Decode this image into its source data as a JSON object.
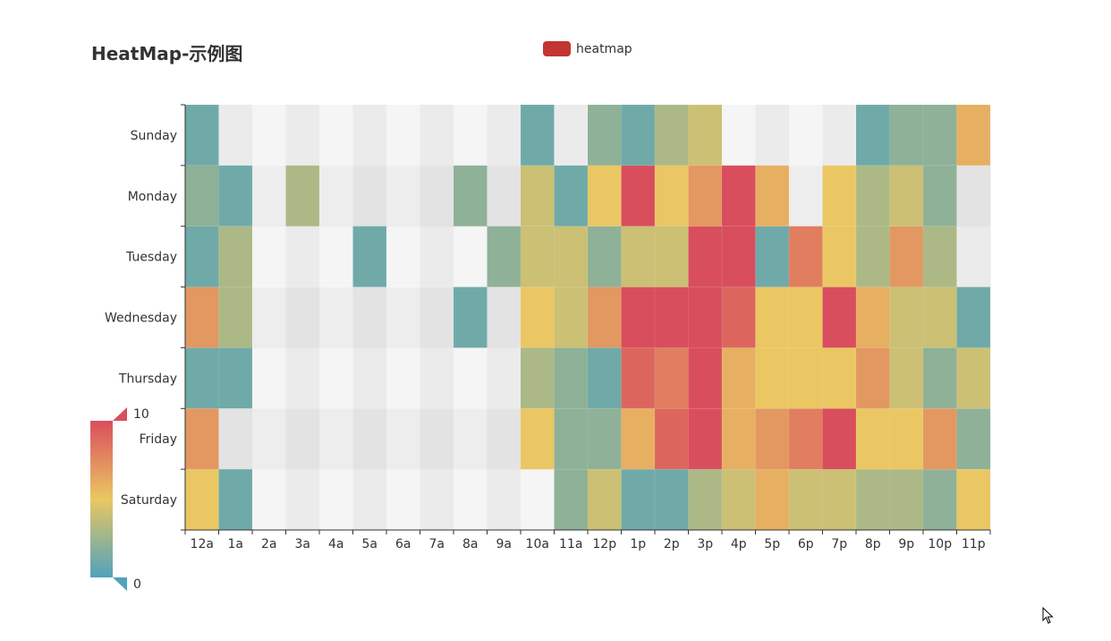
{
  "title": "HeatMap-示例图",
  "legend": {
    "label": "heatmap",
    "color": "#c23531"
  },
  "chart_data": {
    "type": "heatmap",
    "title": "HeatMap-示例图",
    "series": [
      {
        "name": "heatmap"
      }
    ],
    "x_categories": [
      "12a",
      "1a",
      "2a",
      "3a",
      "4a",
      "5a",
      "6a",
      "7a",
      "8a",
      "9a",
      "10a",
      "11a",
      "12p",
      "1p",
      "2p",
      "3p",
      "4p",
      "5p",
      "6p",
      "7p",
      "8p",
      "9p",
      "10p",
      "11p"
    ],
    "y_categories": [
      "Saturday",
      "Friday",
      "Thursday",
      "Wednesday",
      "Tuesday",
      "Monday",
      "Sunday"
    ],
    "values": [
      [
        5,
        1,
        0,
        0,
        0,
        0,
        0,
        0,
        0,
        0,
        0,
        2,
        4,
        1,
        1,
        3,
        4,
        6,
        4,
        4,
        3,
        3,
        2,
        5
      ],
      [
        7,
        0,
        0,
        0,
        0,
        0,
        0,
        0,
        0,
        0,
        5,
        2,
        2,
        6,
        9,
        11,
        6,
        7,
        8,
        12,
        5,
        5,
        7,
        2
      ],
      [
        1,
        1,
        0,
        0,
        0,
        0,
        0,
        0,
        0,
        0,
        3,
        2,
        1,
        9,
        8,
        10,
        6,
        5,
        5,
        5,
        7,
        4,
        2,
        4
      ],
      [
        7,
        3,
        0,
        0,
        0,
        0,
        0,
        0,
        1,
        0,
        5,
        4,
        7,
        14,
        13,
        12,
        9,
        5,
        5,
        10,
        6,
        4,
        4,
        1
      ],
      [
        1,
        3,
        0,
        0,
        0,
        1,
        0,
        0,
        0,
        2,
        4,
        4,
        2,
        4,
        4,
        14,
        12,
        1,
        8,
        5,
        3,
        7,
        3,
        0
      ],
      [
        2,
        1,
        0,
        3,
        0,
        0,
        0,
        0,
        2,
        0,
        4,
        1,
        5,
        10,
        5,
        7,
        11,
        6,
        0,
        5,
        3,
        4,
        2,
        0
      ],
      [
        1,
        0,
        0,
        0,
        0,
        0,
        0,
        0,
        0,
        0,
        1,
        0,
        2,
        1,
        3,
        4,
        0,
        0,
        0,
        0,
        1,
        2,
        2,
        6
      ]
    ],
    "empty_value": 0,
    "visual_map": {
      "min": 0,
      "max": 10,
      "min_label": "0",
      "max_label": "10",
      "colors": [
        "#50a3ba",
        "#eac763",
        "#d94e5d"
      ],
      "orientation": "vertical",
      "position": "bottom-left"
    },
    "legend_position": "top-center",
    "split_area": true
  }
}
